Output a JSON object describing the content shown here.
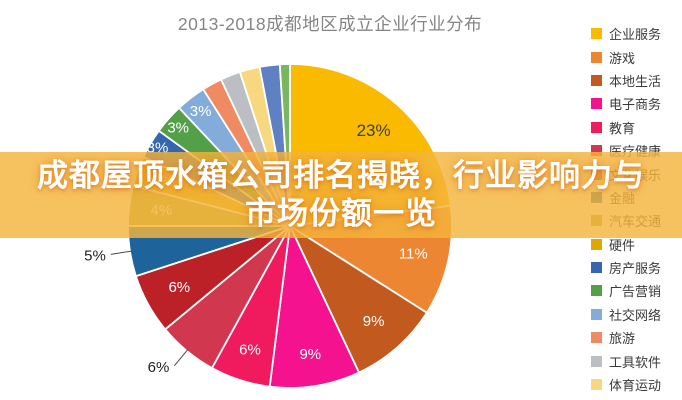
{
  "title": "2013-2018成都地区成立企业行业分布",
  "banner": {
    "line1": "成都屋顶水箱公司排名揭晓，行业影响力与",
    "line2": "市场份额一览",
    "bg_color": "#F4B53C"
  },
  "chart_data": {
    "type": "pie",
    "title": "2013-2018成都地区成立企业行业分布",
    "legend_position": "right",
    "start_angle_deg": 0,
    "direction": "clockwise",
    "unit": "percent",
    "slices": [
      {
        "label": "企业服务",
        "value": 23,
        "pct_label": "23%",
        "color": "#F9BA00",
        "label_style": "inside-dark",
        "in_legend": true
      },
      {
        "label": "游戏",
        "value": 11,
        "pct_label": "11%",
        "color": "#EC8633",
        "label_style": "inside",
        "in_legend": true
      },
      {
        "label": "本地生活",
        "value": 9,
        "pct_label": "9%",
        "color": "#C2591F",
        "label_style": "inside",
        "in_legend": true
      },
      {
        "label": "电子商务",
        "value": 9,
        "pct_label": "9%",
        "color": "#F5128F",
        "label_style": "inside",
        "in_legend": true
      },
      {
        "label": "教育",
        "value": 6,
        "pct_label": "6%",
        "color": "#F01A5F",
        "label_style": "inside",
        "in_legend": true
      },
      {
        "label": "医疗健康",
        "value": 6,
        "pct_label": "6%",
        "color": "#D23750",
        "label_style": "outside",
        "in_legend": true
      },
      {
        "label": "文化娱乐",
        "value": 6,
        "pct_label": "6%",
        "color": "#BC2127",
        "label_style": "inside",
        "in_legend": true
      },
      {
        "label": "金融",
        "value": 5,
        "pct_label": "5%",
        "color": "#1E6399",
        "label_style": "outside",
        "in_legend": true
      },
      {
        "label": "汽车交通",
        "value": 4,
        "pct_label": "4%",
        "color": "#AEA83B",
        "label_style": "inside",
        "in_legend": true
      },
      {
        "label": "硬件",
        "value": 3,
        "pct_label": "3%",
        "color": "#DFA700",
        "label_style": "inside",
        "in_legend": true
      },
      {
        "label": "房产服务",
        "value": 3,
        "pct_label": "3%",
        "color": "#3566AE",
        "label_style": "inside",
        "in_legend": true
      },
      {
        "label": "广告营销",
        "value": 3,
        "pct_label": "3%",
        "color": "#53A048",
        "label_style": "inside",
        "in_legend": true
      },
      {
        "label": "社交网络",
        "value": 3,
        "pct_label": "3%",
        "color": "#83ACDB",
        "label_style": "inside",
        "in_legend": true
      },
      {
        "label": "旅游",
        "value": 2,
        "pct_label": "",
        "color": "#EF8A63",
        "label_style": "none",
        "in_legend": true
      },
      {
        "label": "工具软件",
        "value": 2,
        "pct_label": "",
        "color": "#BBBFC3",
        "label_style": "none",
        "in_legend": true
      },
      {
        "label": "体育运动",
        "value": 2,
        "pct_label": "",
        "color": "#F7D87F",
        "label_style": "none",
        "in_legend": true
      },
      {
        "label": "",
        "value": 2,
        "pct_label": "",
        "color": "#6080C4",
        "label_style": "none",
        "in_legend": false
      },
      {
        "label": "",
        "value": 1,
        "pct_label": "",
        "color": "#79B65F",
        "label_style": "none",
        "in_legend": false
      }
    ]
  }
}
